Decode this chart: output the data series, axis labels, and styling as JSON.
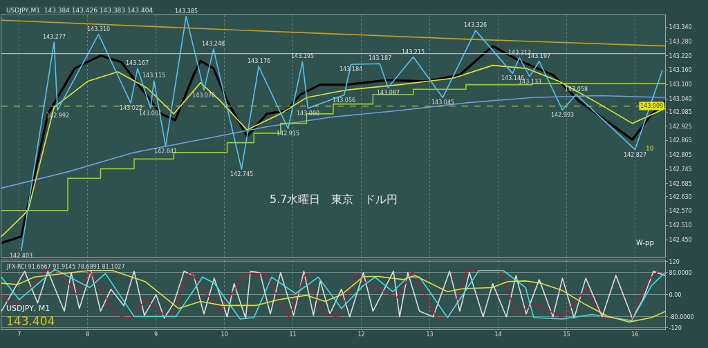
{
  "chart_data": [
    {
      "type": "line",
      "tick_labels": "y",
      "grid": "x",
      "line_style": "solid",
      "xlim": [
        6.74,
        16.44
      ],
      "xticks": [
        7,
        8,
        9,
        10,
        11,
        12,
        13,
        14,
        15,
        16
      ],
      "ylim": [
        142.377,
        143.39
      ],
      "yticks": [
        {
          "value": 143.34,
          "label": "143.340"
        },
        {
          "value": 143.28,
          "label": "143.280"
        },
        {
          "value": 143.22,
          "label": "143.220"
        },
        {
          "value": 143.16,
          "label": "143.160"
        },
        {
          "value": 143.1,
          "label": "143.100"
        },
        {
          "value": 143.04,
          "label": "143.040"
        },
        {
          "value": 142.985,
          "label": "142.985"
        },
        {
          "value": 142.925,
          "label": "142.925"
        },
        {
          "value": 142.865,
          "label": "142.865"
        },
        {
          "value": 142.805,
          "label": "142.805"
        },
        {
          "value": 142.745,
          "label": "142.745"
        },
        {
          "value": 142.685,
          "label": "142.685"
        },
        {
          "value": 142.63,
          "label": "142.630"
        },
        {
          "value": 142.57,
          "label": "142.570"
        },
        {
          "value": 142.51,
          "label": "142.510"
        },
        {
          "value": 142.45,
          "label": "142.450"
        }
      ],
      "annotations": [
        "USDJPY,M1  143.384 143.426 143.383 143.404",
        "5.7水曜日　東京　ドル円",
        "W-pp",
        "10"
      ],
      "ref_lines": [
        {
          "axis": "y",
          "value": 143.229,
          "label": null,
          "color": "#d8a0e0",
          "line_style": "solid"
        },
        {
          "axis": "y",
          "value": 143.009,
          "label": "143.009",
          "color": "#e8e800",
          "line_style": "dashed"
        }
      ],
      "series": [
        {
          "type": "line",
          "color": "#000000",
          "x": [
            6.74,
            7.03,
            7.42,
            7.81,
            8.19,
            8.49,
            8.78,
            9.07,
            9.28,
            9.55,
            9.65,
            9.84,
            10.04,
            10.33,
            10.62,
            10.91,
            11.11,
            11.4,
            11.79,
            12.37,
            12.95,
            13.44,
            13.92,
            14.31,
            14.8,
            15.18,
            15.57,
            15.96,
            16.25,
            16.44
          ],
          "values": [
            142.436,
            142.463,
            142.977,
            143.167,
            143.221,
            143.194,
            143.085,
            142.977,
            142.95,
            143.14,
            143.199,
            143.167,
            143.031,
            142.883,
            142.977,
            142.991,
            143.058,
            143.099,
            143.099,
            143.118,
            143.113,
            143.14,
            143.261,
            143.199,
            143.14,
            143.031,
            142.95,
            142.869,
            142.977,
            143.031
          ]
        },
        {
          "type": "line",
          "color": "#e6e62e",
          "x": [
            6.74,
            7.13,
            7.51,
            8.0,
            8.44,
            8.87,
            9.26,
            9.65,
            9.94,
            10.33,
            10.82,
            11.2,
            11.79,
            12.56,
            13.34,
            13.92,
            14.41,
            14.89,
            15.48,
            15.96,
            16.44
          ],
          "values": [
            142.463,
            142.572,
            143.004,
            143.113,
            143.153,
            143.085,
            142.977,
            143.107,
            143.031,
            142.91,
            142.977,
            143.045,
            143.077,
            143.099,
            143.126,
            143.18,
            143.167,
            143.113,
            143.018,
            142.937,
            142.999
          ]
        },
        {
          "type": "line",
          "color": "#6fa0e0",
          "x": [
            6.74,
            7.71,
            8.68,
            9.65,
            10.62,
            11.59,
            12.56,
            13.53,
            14.5,
            15.48,
            16.44
          ],
          "values": [
            142.666,
            142.734,
            142.815,
            142.869,
            142.923,
            142.964,
            142.991,
            143.023,
            143.045,
            143.053,
            143.045
          ]
        },
        {
          "type": "step",
          "color": "#9acd32",
          "x": [
            6.74,
            7.71,
            8.19,
            8.68,
            9.26,
            10.04,
            10.43,
            10.82,
            11.2,
            11.59,
            12.17,
            12.76,
            13.53,
            14.5,
            16.44
          ],
          "values": [
            142.572,
            142.707,
            142.747,
            142.788,
            142.815,
            142.856,
            142.896,
            142.937,
            142.977,
            143.018,
            143.058,
            143.08,
            143.099,
            143.104,
            143.104
          ]
        },
        {
          "type": "line",
          "color": "#d4a017",
          "x": [
            6.74,
            10,
            13.5,
            16.44
          ],
          "values": [
            143.369,
            143.33,
            143.29,
            143.261
          ]
        },
        {
          "type": "line",
          "color": "#5bc0eb",
          "x": [
            7.03,
            7.51,
            7.56,
            8.16,
            8.63,
            8.73,
            8.92,
            8.97,
            9.14,
            9.44,
            9.7,
            9.84,
            10.25,
            10.5,
            10.93,
            11.14,
            11.22,
            11.75,
            11.85,
            12.27,
            12.39,
            12.76,
            13.19,
            13.67,
            14.21,
            14.31,
            14.46,
            14.6,
            14.94,
            15.14,
            16.0,
            16.4
          ],
          "values": [
            142.403,
            143.277,
            142.992,
            143.31,
            143.022,
            143.167,
            143.001,
            143.115,
            142.841,
            143.385,
            143.076,
            143.248,
            142.745,
            143.176,
            142.915,
            143.195,
            143.0,
            143.056,
            143.184,
            143.187,
            143.087,
            143.215,
            143.045,
            143.326,
            143.146,
            143.212,
            143.133,
            143.197,
            142.993,
            143.058,
            142.827,
            143.16
          ],
          "value_labels": [
            "142.403",
            "143.277",
            "142.992",
            "143.310",
            "143.022",
            "143.167",
            "143.001",
            "143.115",
            "142.841",
            "143.385",
            "143.076",
            "143.248",
            "142.745",
            "143.176",
            "142.915",
            "143.195",
            "143.000",
            "143.056",
            "143.184",
            "143.187",
            "143.087",
            "143.215",
            "143.045",
            "143.326",
            "143.146",
            "143.212",
            "143.133",
            "143.197",
            "142.993",
            "143.058",
            "142.827",
            null
          ]
        }
      ]
    },
    {
      "type": "line",
      "grid": true,
      "line_style": "solid",
      "xlim": [
        6.74,
        16.44
      ],
      "xticks": [
        7,
        8,
        9,
        10,
        11,
        12,
        13,
        14,
        15,
        16
      ],
      "ylim": [
        -125,
        125
      ],
      "yticks": [
        120,
        {
          "value": 80,
          "label": "80.0000"
        },
        {
          "value": 0,
          "label": "0.00"
        },
        {
          "value": -80,
          "label": "-80.0000"
        },
        -120
      ],
      "annotations": [
        "JFX-RCI 91.6667 91.9145 78.6891 81.1027",
        "USDJPY, M1",
        "143.404"
      ],
      "series": [
        {
          "type": "line",
          "color": "#dddddd",
          "x": [
            6.74,
            7.08,
            7.27,
            7.42,
            7.66,
            7.76,
            7.88,
            8.05,
            8.19,
            8.34,
            8.53,
            8.68,
            8.83,
            9.0,
            9.12,
            9.26,
            9.41,
            9.55,
            9.7,
            9.85,
            10.04,
            10.14,
            10.31,
            10.38,
            10.52,
            10.67,
            10.82,
            11.01,
            11.16,
            11.3,
            11.4,
            11.54,
            11.71,
            11.83,
            12.03,
            12.17,
            12.47,
            12.56,
            12.68,
            12.85,
            13.05,
            13.29,
            13.44,
            13.58,
            13.78,
            13.92,
            14.12,
            14.26,
            14.41,
            14.6,
            14.8,
            14.94,
            15.11,
            15.28,
            15.52,
            15.72,
            15.96,
            16.11,
            16.27,
            16.44
          ],
          "values": [
            -60,
            85,
            -30,
            85,
            -60,
            80,
            -50,
            85,
            -60,
            20,
            -40,
            85,
            -75,
            0,
            -85,
            -30,
            85,
            70,
            -70,
            60,
            -80,
            40,
            -85,
            85,
            80,
            -70,
            80,
            -75,
            85,
            -75,
            50,
            -70,
            20,
            -80,
            80,
            -60,
            85,
            -80,
            80,
            -60,
            -80,
            85,
            -60,
            80,
            -80,
            40,
            -80,
            70,
            -70,
            55,
            -80,
            60,
            -85,
            60,
            -80,
            70,
            -85,
            -20,
            85,
            70
          ]
        },
        {
          "type": "line",
          "color": "#a0203c",
          "x": [
            6.74,
            6.93,
            7.39,
            7.64,
            7.84,
            8.03,
            8.42,
            8.61,
            8.85,
            9.2,
            9.49,
            9.94,
            10.3,
            10.59,
            10.94,
            11.18,
            11.43,
            11.66,
            11.93,
            12.07,
            12.52,
            12.75,
            13.07,
            13.14,
            13.33,
            13.53,
            14.04,
            14.26,
            14.55,
            14.94,
            15.3,
            15.5,
            15.95,
            16.17,
            16.34,
            16.44
          ],
          "values": [
            0,
            -50,
            92,
            70,
            0,
            85,
            -72,
            -90,
            -18,
            -90,
            85,
            -61,
            77,
            77,
            -83,
            75,
            -61,
            -83,
            77,
            42,
            -11,
            85,
            -68,
            -94,
            -68,
            85,
            85,
            -68,
            -33,
            -83,
            26,
            -83,
            -90,
            48,
            85,
            81
          ]
        },
        {
          "type": "line",
          "color": "#40e0e0",
          "x": [
            6.74,
            7.0,
            7.52,
            8.03,
            8.26,
            8.68,
            9.29,
            9.68,
            9.85,
            10.23,
            10.43,
            10.69,
            11.04,
            11.37,
            11.71,
            12.03,
            12.2,
            12.46,
            12.68,
            12.85,
            13.26,
            13.72,
            14.07,
            14.4,
            14.52,
            14.94,
            15.37,
            15.95,
            16.24,
            16.44
          ],
          "values": [
            64,
            -18,
            92,
            26,
            77,
            -79,
            -79,
            64,
            42,
            -88,
            -83,
            64,
            4,
            64,
            -50,
            33,
            64,
            11,
            64,
            64,
            -83,
            88,
            88,
            26,
            -83,
            -88,
            -72,
            -94,
            33,
            81
          ]
        },
        {
          "type": "line",
          "color": "#e0e040",
          "x": [
            6.74,
            6.98,
            7.22,
            8.03,
            8.36,
            8.84,
            9.33,
            9.65,
            9.97,
            10.46,
            10.79,
            11.2,
            11.47,
            11.71,
            12.03,
            12.26,
            12.61,
            12.78,
            13.26,
            13.49,
            13.91,
            14.14,
            14.4,
            14.62,
            14.94,
            15.27,
            15.59,
            15.91,
            16.24,
            16.44
          ],
          "values": [
            42,
            37,
            64,
            88,
            88,
            48,
            -50,
            -24,
            -39,
            -39,
            -18,
            -2,
            -24,
            0,
            66,
            66,
            55,
            70,
            11,
            22,
            26,
            48,
            50,
            42,
            15,
            -35,
            -77,
            -99,
            -83,
            -61
          ]
        }
      ]
    }
  ]
}
